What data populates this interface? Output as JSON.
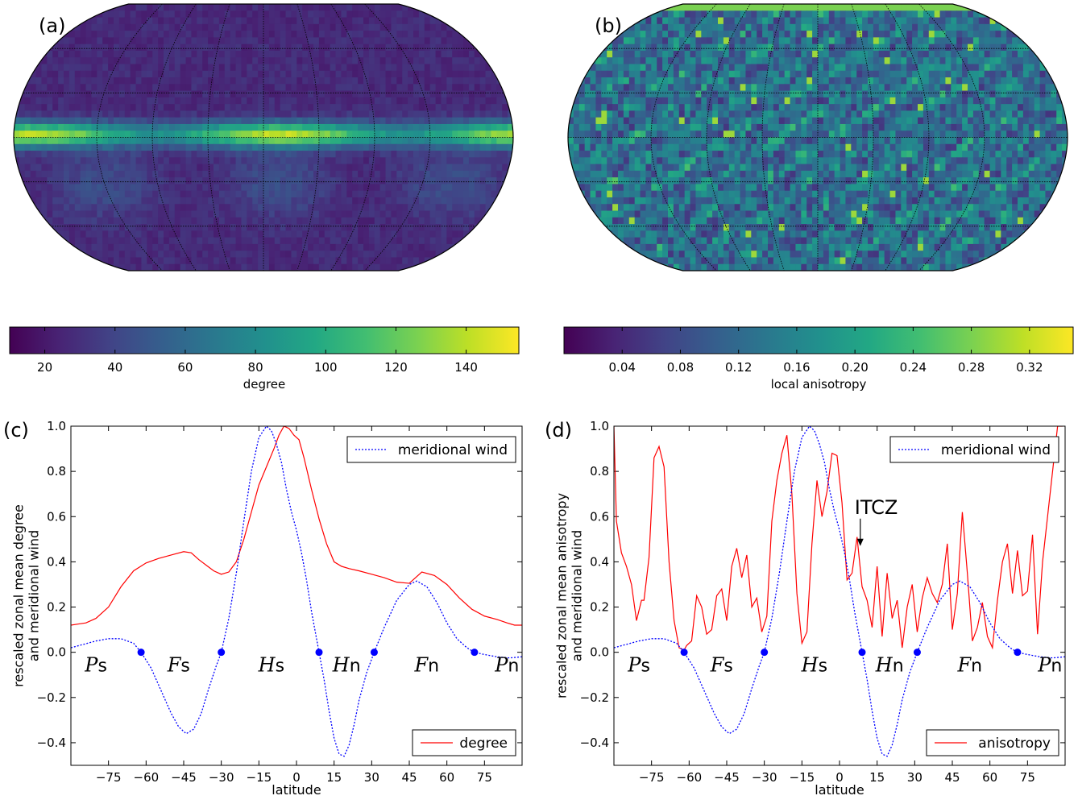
{
  "panels": {
    "a": {
      "label": "(a)"
    },
    "b": {
      "label": "(b)"
    },
    "c": {
      "label": "(c)"
    },
    "d": {
      "label": "(d)"
    }
  },
  "colormap": [
    "#440154",
    "#482475",
    "#414487",
    "#355f8d",
    "#2a788e",
    "#21908d",
    "#22a884",
    "#42be71",
    "#7ad151",
    "#bddf26",
    "#fde725"
  ],
  "chart_data": [
    {
      "id": "a",
      "type": "heatmap",
      "projection": "Robinson (global map)",
      "colorbar": {
        "label": "degree",
        "ticks": [
          20,
          40,
          60,
          80,
          100,
          120,
          140
        ],
        "tick_labels": [
          "20",
          "40",
          "60",
          "80",
          "100",
          "120",
          "140"
        ],
        "range": [
          10,
          155
        ]
      },
      "description_values": {
        "equatorial_band_value": 150,
        "background_value": 30
      }
    },
    {
      "id": "b",
      "type": "heatmap",
      "projection": "Robinson (global map)",
      "colorbar": {
        "label": "local anisotropy",
        "ticks": [
          0.04,
          0.08,
          0.12,
          0.16,
          0.2,
          0.24,
          0.28,
          0.32
        ],
        "tick_labels": [
          "0.04",
          "0.08",
          "0.12",
          "0.16",
          "0.20",
          "0.24",
          "0.28",
          "0.32"
        ],
        "range": [
          0.0,
          0.35
        ]
      }
    },
    {
      "id": "c",
      "type": "line",
      "xlabel": "latitude",
      "ylabel": "rescaled zonal mean degree and meridional wind",
      "ylabel_lines": [
        "rescaled zonal mean degree",
        "and meridional wind"
      ],
      "xlim": [
        -90,
        90
      ],
      "ylim": [
        -0.5,
        1.0
      ],
      "xticks": [
        -75,
        -60,
        -45,
        -30,
        -15,
        0,
        15,
        30,
        45,
        60,
        75
      ],
      "xtick_labels": [
        "−75",
        "−60",
        "−45",
        "−30",
        "−15",
        "0",
        "15",
        "30",
        "45",
        "60",
        "75"
      ],
      "yticks": [
        -0.4,
        -0.2,
        0.0,
        0.2,
        0.4,
        0.6,
        0.8,
        1.0
      ],
      "ytick_labels": [
        "−0.4",
        "−0.2",
        "0.0",
        "0.2",
        "0.4",
        "0.6",
        "0.8",
        "1.0"
      ],
      "series": [
        {
          "name": "degree",
          "color": "#ff0000",
          "style": "solid",
          "x": [
            -90,
            -87,
            -84,
            -80,
            -75,
            -70,
            -65,
            -60,
            -55,
            -50,
            -45,
            -42,
            -39,
            -36,
            -33,
            -30,
            -27,
            -24,
            -21,
            -18,
            -15,
            -12,
            -9,
            -7,
            -5,
            -3,
            -1,
            1,
            3,
            6,
            9,
            12,
            15,
            18,
            21,
            25,
            30,
            35,
            40,
            45,
            50,
            55,
            60,
            65,
            70,
            75,
            80,
            84,
            87,
            90
          ],
          "y": [
            0.12,
            0.125,
            0.13,
            0.15,
            0.2,
            0.29,
            0.36,
            0.395,
            0.415,
            0.43,
            0.445,
            0.44,
            0.41,
            0.385,
            0.36,
            0.345,
            0.355,
            0.4,
            0.5,
            0.62,
            0.74,
            0.82,
            0.9,
            0.96,
            1.0,
            0.99,
            0.96,
            0.94,
            0.86,
            0.72,
            0.59,
            0.48,
            0.4,
            0.38,
            0.37,
            0.36,
            0.345,
            0.33,
            0.31,
            0.305,
            0.355,
            0.34,
            0.3,
            0.24,
            0.19,
            0.16,
            0.145,
            0.13,
            0.12,
            0.12
          ]
        },
        {
          "name": "meridional wind",
          "color": "#0000ff",
          "style": "dotted",
          "x": [
            -90,
            -85,
            -80,
            -75,
            -70,
            -65,
            -62,
            -58,
            -54,
            -50,
            -47,
            -44,
            -41,
            -38,
            -35,
            -32,
            -30,
            -27,
            -24,
            -21,
            -18,
            -15,
            -12,
            -10,
            -8,
            -6,
            -4,
            -2,
            0,
            2,
            4,
            6,
            8,
            9,
            11,
            13,
            15,
            17,
            19,
            21,
            23,
            25,
            28,
            31,
            35,
            40,
            45,
            48,
            52,
            56,
            60,
            64,
            68,
            71,
            75,
            80,
            85,
            90
          ],
          "y": [
            0.02,
            0.035,
            0.05,
            0.06,
            0.06,
            0.04,
            0.0,
            -0.07,
            -0.17,
            -0.27,
            -0.33,
            -0.36,
            -0.34,
            -0.27,
            -0.16,
            -0.06,
            0.0,
            0.15,
            0.35,
            0.58,
            0.8,
            0.95,
            1.0,
            0.98,
            0.92,
            0.84,
            0.72,
            0.62,
            0.54,
            0.44,
            0.32,
            0.18,
            0.06,
            0.0,
            -0.12,
            -0.26,
            -0.38,
            -0.45,
            -0.46,
            -0.41,
            -0.32,
            -0.21,
            -0.09,
            0.0,
            0.11,
            0.23,
            0.3,
            0.315,
            0.29,
            0.22,
            0.13,
            0.06,
            0.02,
            0.0,
            -0.01,
            -0.02,
            -0.025,
            -0.02
          ]
        }
      ],
      "zero_points": [
        -62,
        -30,
        9,
        31,
        71
      ],
      "cell_labels": [
        {
          "letter": "P",
          "sub": "s",
          "x": -80
        },
        {
          "letter": "F",
          "sub": "s",
          "x": -47
        },
        {
          "letter": "H",
          "sub": "s",
          "x": -10
        },
        {
          "letter": "H",
          "sub": "n",
          "x": 20
        },
        {
          "letter": "F",
          "sub": "n",
          "x": 52
        },
        {
          "letter": "P",
          "sub": "n",
          "x": 84
        }
      ],
      "legends": [
        {
          "text": "meridional wind",
          "position": "top-right",
          "style": "dotted",
          "color": "#0000ff"
        },
        {
          "text": "degree",
          "position": "bottom-right",
          "style": "solid",
          "color": "#ff0000"
        }
      ]
    },
    {
      "id": "d",
      "type": "line",
      "xlabel": "latitude",
      "ylabel": "rescaled zonal mean anisotropy and meridional wind",
      "ylabel_lines": [
        "rescaled zonal mean anisotropy",
        "and meridional wind"
      ],
      "xlim": [
        -90,
        90
      ],
      "ylim": [
        -0.5,
        1.0
      ],
      "xticks": [
        -75,
        -60,
        -45,
        -30,
        -15,
        0,
        15,
        30,
        45,
        60,
        75
      ],
      "xtick_labels": [
        "−75",
        "−60",
        "−45",
        "−30",
        "−15",
        "0",
        "15",
        "30",
        "45",
        "60",
        "75"
      ],
      "yticks": [
        -0.4,
        -0.2,
        0.0,
        0.2,
        0.4,
        0.6,
        0.8,
        1.0
      ],
      "ytick_labels": [
        "−0.4",
        "−0.2",
        "0.0",
        "0.2",
        "0.4",
        "0.6",
        "0.8",
        "1.0"
      ],
      "series": [
        {
          "name": "anisotropy",
          "color": "#ff0000",
          "style": "solid",
          "x": [
            -90,
            -89,
            -87,
            -85,
            -83,
            -81,
            -79,
            -78,
            -76,
            -74,
            -72,
            -70,
            -68,
            -66,
            -64,
            -62,
            -61,
            -59,
            -57,
            -55,
            -53,
            -51,
            -49,
            -47,
            -45,
            -43,
            -41,
            -39,
            -37,
            -35,
            -33,
            -31,
            -29,
            -27,
            -25,
            -23,
            -21,
            -19,
            -17,
            -15,
            -13,
            -11,
            -9,
            -7,
            -5,
            -3,
            -1,
            1,
            3,
            5,
            7,
            9,
            11,
            13,
            15,
            17,
            19,
            21,
            23,
            25,
            27,
            29,
            31,
            33,
            35,
            37,
            39,
            41,
            43,
            45,
            47,
            49,
            51,
            53,
            55,
            57,
            59,
            61,
            63,
            65,
            67,
            69,
            71,
            73,
            75,
            77,
            79,
            81,
            83,
            85,
            87,
            88,
            89
          ],
          "y": [
            1.0,
            0.58,
            0.44,
            0.38,
            0.3,
            0.14,
            0.23,
            0.23,
            0.42,
            0.86,
            0.91,
            0.82,
            0.4,
            0.14,
            0.02,
            0.01,
            0.03,
            0.05,
            0.25,
            0.2,
            0.08,
            0.1,
            0.25,
            0.28,
            0.14,
            0.38,
            0.46,
            0.33,
            0.43,
            0.2,
            0.24,
            0.09,
            0.16,
            0.58,
            0.76,
            0.88,
            0.96,
            0.7,
            0.26,
            0.04,
            0.09,
            0.48,
            0.76,
            0.6,
            0.71,
            0.88,
            0.87,
            0.66,
            0.32,
            0.35,
            0.51,
            0.29,
            0.23,
            0.11,
            0.38,
            0.07,
            0.35,
            0.15,
            0.23,
            0.02,
            0.2,
            0.3,
            0.09,
            0.24,
            0.33,
            0.26,
            0.22,
            0.3,
            0.48,
            0.1,
            0.26,
            0.62,
            0.35,
            0.05,
            0.11,
            0.22,
            0.07,
            0.02,
            0.23,
            0.4,
            0.48,
            0.26,
            0.45,
            0.25,
            0.27,
            0.52,
            0.08,
            0.4,
            0.6,
            0.8,
            1.0,
            1.0,
            1.0
          ]
        },
        {
          "name": "meridional wind",
          "color": "#0000ff",
          "style": "dotted",
          "x": [
            -90,
            -85,
            -80,
            -75,
            -70,
            -65,
            -62,
            -58,
            -54,
            -50,
            -47,
            -44,
            -41,
            -38,
            -35,
            -32,
            -30,
            -27,
            -24,
            -21,
            -18,
            -15,
            -12,
            -10,
            -8,
            -6,
            -4,
            -2,
            0,
            2,
            4,
            6,
            8,
            9,
            11,
            13,
            15,
            17,
            19,
            21,
            23,
            25,
            28,
            31,
            35,
            40,
            45,
            48,
            52,
            56,
            60,
            64,
            68,
            71,
            75,
            80,
            85,
            90
          ],
          "y": [
            0.02,
            0.035,
            0.05,
            0.06,
            0.06,
            0.04,
            0.0,
            -0.07,
            -0.17,
            -0.27,
            -0.33,
            -0.36,
            -0.34,
            -0.27,
            -0.16,
            -0.06,
            0.0,
            0.15,
            0.35,
            0.58,
            0.8,
            0.95,
            1.0,
            0.98,
            0.92,
            0.84,
            0.72,
            0.62,
            0.54,
            0.44,
            0.32,
            0.18,
            0.06,
            0.0,
            -0.12,
            -0.26,
            -0.38,
            -0.45,
            -0.46,
            -0.41,
            -0.32,
            -0.21,
            -0.09,
            0.0,
            0.11,
            0.23,
            0.3,
            0.315,
            0.29,
            0.22,
            0.13,
            0.06,
            0.02,
            0.0,
            -0.01,
            -0.02,
            -0.025,
            -0.02
          ]
        }
      ],
      "zero_points": [
        -62,
        -30,
        9,
        31,
        71
      ],
      "cell_labels": [
        {
          "letter": "P",
          "sub": "s",
          "x": -80
        },
        {
          "letter": "F",
          "sub": "s",
          "x": -47
        },
        {
          "letter": "H",
          "sub": "s",
          "x": -10
        },
        {
          "letter": "H",
          "sub": "n",
          "x": 20
        },
        {
          "letter": "F",
          "sub": "n",
          "x": 52
        },
        {
          "letter": "P",
          "sub": "n",
          "x": 84
        }
      ],
      "annotation": {
        "text": "ITCZ",
        "x": 7,
        "y": 0.47
      },
      "legends": [
        {
          "text": "meridional wind",
          "position": "top-right",
          "style": "dotted",
          "color": "#0000ff"
        },
        {
          "text": "anisotropy",
          "position": "bottom-right",
          "style": "solid",
          "color": "#ff0000"
        }
      ]
    }
  ]
}
